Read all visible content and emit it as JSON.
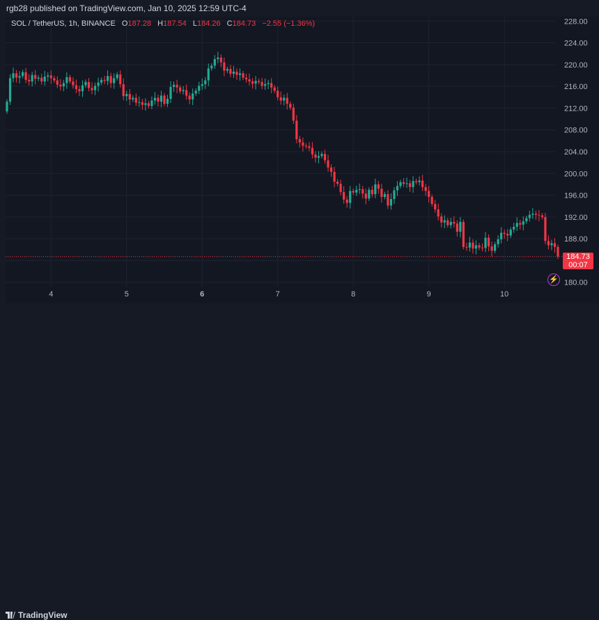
{
  "header": {
    "published_text": "rgb28 published on TradingView.com, Jan 10, 2025 12:59 UTC-4"
  },
  "legend": {
    "symbol": "SOL / TetherUS, 1h, BINANCE",
    "o_label": "O",
    "o_value": "187.28",
    "h_label": "H",
    "h_value": "187.54",
    "l_label": "L",
    "l_value": "184.26",
    "c_label": "C",
    "c_value": "184.73",
    "change": "−2.55 (−1.36%)"
  },
  "price_badge": {
    "price": "184.73",
    "countdown": "00:07"
  },
  "footer": {
    "brand": "TradingView"
  },
  "colors": {
    "up": "#22ab94",
    "down": "#f23645",
    "background": "#131722",
    "grid": "#1f2330",
    "axis_text": "#b2b5be"
  },
  "chart_data": {
    "type": "candlestick",
    "symbol": "SOL / TetherUS",
    "interval": "1h",
    "y_ticks": [
      "228.00",
      "224.00",
      "220.00",
      "216.00",
      "212.00",
      "208.00",
      "204.00",
      "200.00",
      "196.00",
      "192.00",
      "188.00",
      "184.00",
      "180.00"
    ],
    "y_tick_values": [
      228,
      224,
      220,
      216,
      212,
      208,
      204,
      200,
      196,
      192,
      188,
      184,
      180
    ],
    "ylim": [
      179.2,
      228.8
    ],
    "x_ticks": [
      "4",
      "5",
      "6",
      "7",
      "8",
      "9",
      "10"
    ],
    "x_tick_hours": [
      14,
      38,
      62,
      86,
      110,
      134,
      158
    ],
    "last_price": 184.73,
    "grid": true,
    "closes": [
      213.2,
      217.5,
      218.4,
      217.6,
      217.9,
      218.6,
      217.2,
      216.9,
      218.1,
      217.4,
      217.6,
      216.9,
      217.8,
      218.0,
      217.5,
      217.1,
      216.3,
      216.0,
      216.6,
      217.7,
      216.9,
      216.2,
      215.5,
      215.1,
      216.2,
      216.8,
      215.7,
      215.3,
      216.1,
      216.7,
      217.2,
      217.0,
      217.9,
      216.6,
      217.5,
      218.2,
      216.4,
      214.2,
      214.6,
      213.6,
      213.9,
      213.0,
      213.1,
      212.6,
      212.9,
      212.4,
      213.4,
      213.9,
      213.2,
      214.3,
      212.8,
      213.7,
      215.9,
      216.3,
      215.8,
      215.1,
      215.3,
      214.3,
      213.6,
      214.7,
      215.2,
      216.1,
      216.4,
      217.1,
      219.3,
      219.8,
      221.0,
      221.3,
      220.4,
      218.9,
      219.2,
      218.3,
      218.7,
      218.1,
      218.4,
      217.6,
      217.3,
      216.9,
      216.5,
      217.0,
      216.8,
      216.1,
      216.4,
      216.6,
      215.8,
      215.2,
      214.0,
      213.4,
      213.9,
      212.8,
      212.1,
      209.7,
      206.3,
      205.7,
      205.1,
      205.0,
      204.7,
      203.5,
      202.9,
      203.2,
      203.6,
      202.4,
      201.1,
      200.3,
      198.5,
      198.1,
      196.6,
      195.2,
      194.6,
      196.8,
      196.5,
      197.0,
      197.1,
      196.3,
      195.4,
      197.0,
      196.2,
      198.0,
      197.2,
      195.7,
      196.2,
      194.1,
      195.3,
      196.9,
      197.7,
      198.4,
      198.1,
      198.2,
      197.5,
      198.6,
      198.4,
      198.7,
      197.5,
      196.8,
      195.7,
      194.4,
      193.4,
      192.1,
      191.0,
      191.4,
      190.5,
      191.1,
      190.8,
      189.3,
      191.1,
      186.5,
      186.4,
      187.3,
      186.2,
      186.8,
      186.4,
      186.3,
      188.2,
      186.6,
      185.8,
      187.0,
      187.9,
      189.1,
      188.9,
      188.6,
      189.7,
      190.2,
      190.9,
      190.6,
      191.2,
      191.8,
      192.4,
      192.6,
      192.4,
      192.3,
      192.0,
      187.6,
      186.8,
      187.2,
      186.5,
      184.73
    ]
  }
}
